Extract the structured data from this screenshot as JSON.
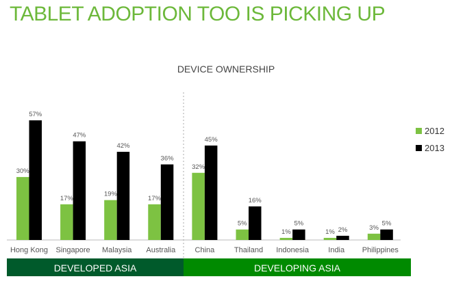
{
  "page_title": "TABLET ADOPTION TOO IS PICKING UP",
  "chart_data": {
    "type": "bar",
    "title": "DEVICE OWNERSHIP",
    "categories": [
      "Hong Kong",
      "Singapore",
      "Malaysia",
      "Australia",
      "China",
      "Thailand",
      "Indonesia",
      "India",
      "Philippines"
    ],
    "series": [
      {
        "name": "2012",
        "color": "#7dc242",
        "values": [
          30,
          17,
          19,
          17,
          32,
          5,
          1,
          1,
          3
        ],
        "labels": [
          "30%",
          "17%",
          "19%",
          "17%",
          "32%",
          "5%",
          "1%",
          "1%",
          "3%"
        ]
      },
      {
        "name": "2013",
        "color": "#000000",
        "values": [
          57,
          47,
          42,
          36,
          45,
          16,
          5,
          2,
          5
        ],
        "labels": [
          "57%",
          "47%",
          "42%",
          "36%",
          "45%",
          "16%",
          "5%",
          "2%",
          "5%"
        ]
      }
    ],
    "unit": "%",
    "legend": "right",
    "grid": false,
    "groups": [
      {
        "label": "DEVELOPED ASIA",
        "color": "#005a2b",
        "categories": 4
      },
      {
        "label": "DEVELOPING ASIA",
        "color": "#008a00",
        "categories": 5
      }
    ]
  }
}
